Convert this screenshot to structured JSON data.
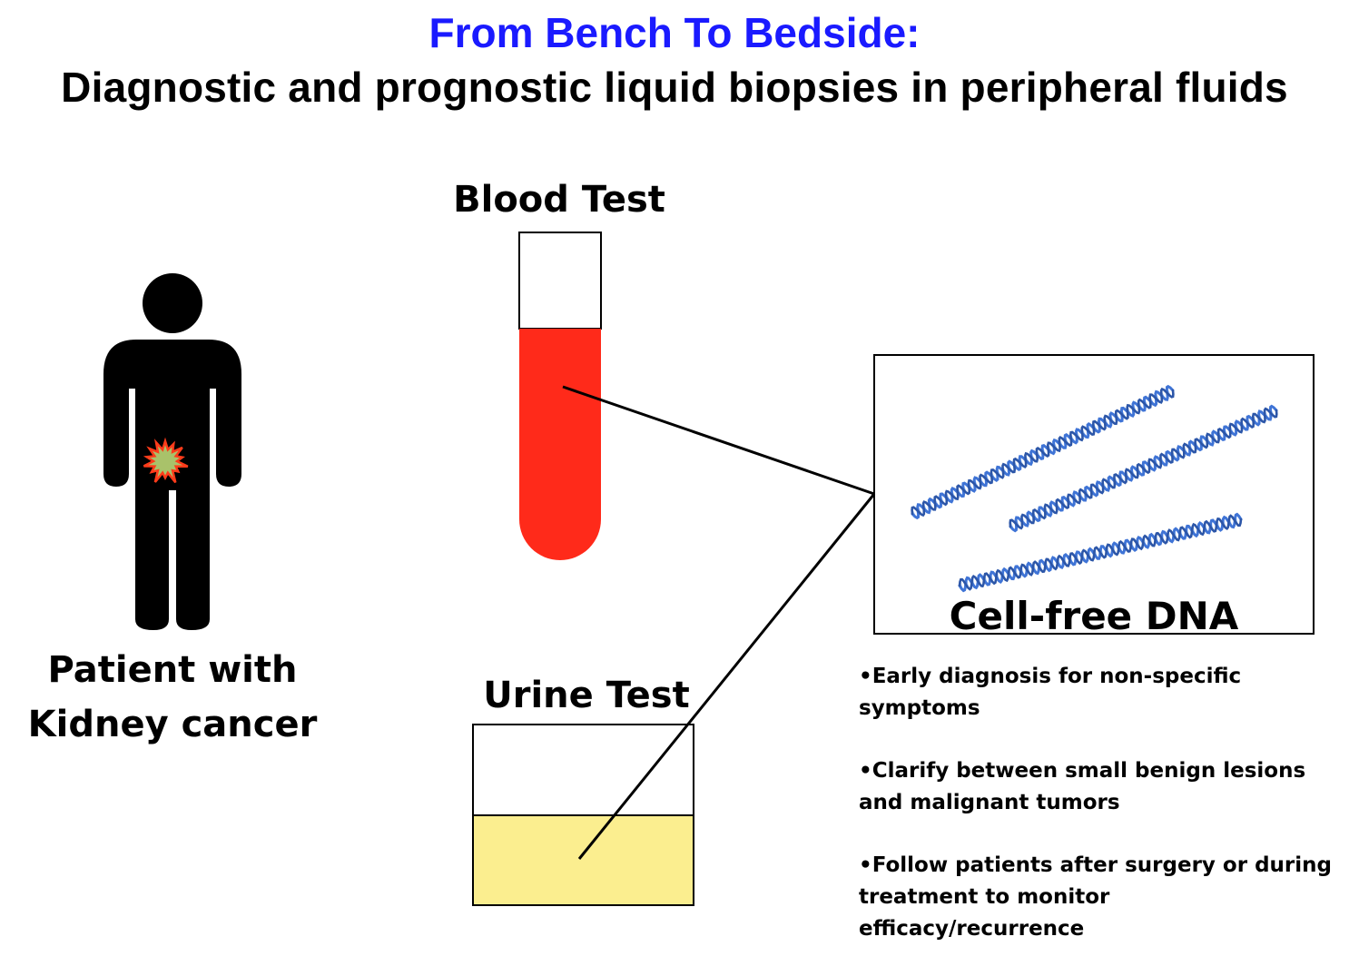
{
  "title": {
    "line1": "From Bench To Bedside:",
    "line2": "Diagnostic and prognostic liquid biopsies in peripheral fluids"
  },
  "labels": {
    "blood_test": "Blood Test",
    "urine_test": "Urine Test",
    "patient_line1": "Patient with",
    "patient_line2": "Kidney cancer",
    "cell_free_dna": "Cell-free DNA"
  },
  "bullets": [
    "•Early diagnosis for non-specific  symptoms",
    "•Clarify between small benign lesions and malignant tumors",
    "•Follow patients after surgery or during treatment to monitor efficacy/recurrence"
  ],
  "icons": {
    "patient": "person-silhouette-icon",
    "tumor": "tumor-starburst-icon",
    "blood_tube": "blood-tube-icon",
    "urine_cup": "urine-container-icon",
    "dna": "dna-helix-icon"
  },
  "colors": {
    "title_accent": "#1a1aff",
    "text": "#000000",
    "blood": "#ff2a1a",
    "urine": "#fbee8f",
    "tumor_fill": "#a9c26a",
    "tumor_stroke": "#ff3b1a",
    "dna_blue": "#3f74d6",
    "dna_light": "#9fc0f0"
  }
}
